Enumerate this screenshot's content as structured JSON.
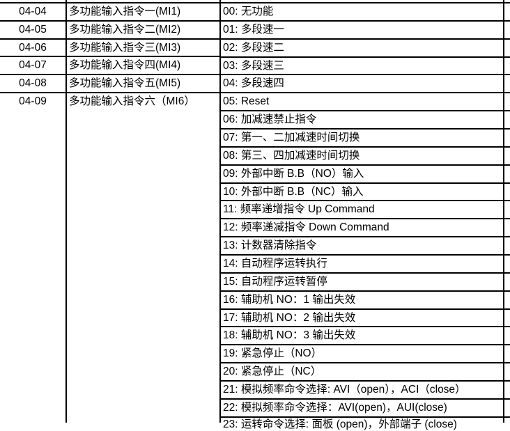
{
  "colors": {
    "background": "#ffffff",
    "text": "#000000",
    "border": "#000000"
  },
  "table": {
    "param_rows": [
      {
        "code": "04-04",
        "name": "多功能输入指令一(MI1)"
      },
      {
        "code": "04-05",
        "name": "多功能输入指令二(MI2)"
      },
      {
        "code": "04-06",
        "name": "多功能输入指令三(MI3)"
      },
      {
        "code": "04-07",
        "name": "多功能输入指令四(MI4)"
      },
      {
        "code": "04-08",
        "name": "多功能输入指令五(MI5)"
      },
      {
        "code": "04-09",
        "name": "多功能输入指令六（MI6）"
      }
    ],
    "value_rows": [
      "00: 无功能",
      "01: 多段速一",
      "02: 多段速二",
      "03: 多段速三",
      "04: 多段速四",
      "05: Reset",
      "06: 加减速禁止指令",
      "07: 第一、二加减速时间切换",
      "08: 第三、四加减速时间切换",
      "09: 外部中断 B.B（NO）输入",
      "10: 外部中断 B.B（NC）输入",
      "11: 频率递增指令 Up Command",
      "12: 频率递减指令 Down Command",
      "13: 计数器清除指令",
      "14: 自动程序运转执行",
      "15: 自动程序运转暂停",
      "16: 辅助机 NO：1 输出失效",
      "17: 辅助机 NO：2 输出失效",
      "18: 辅助机 NO：3 输出失效",
      "19: 紧急停止（NO）",
      "20: 紧急停止（NC）",
      "21: 模拟频率命令选择: AVI（open），ACI（close）",
      "22: 模拟频率命令选择：AVI(open)，AUI(close)",
      "23: 运转命令选择: 面板 (open)，外部端子 (close)"
    ]
  }
}
